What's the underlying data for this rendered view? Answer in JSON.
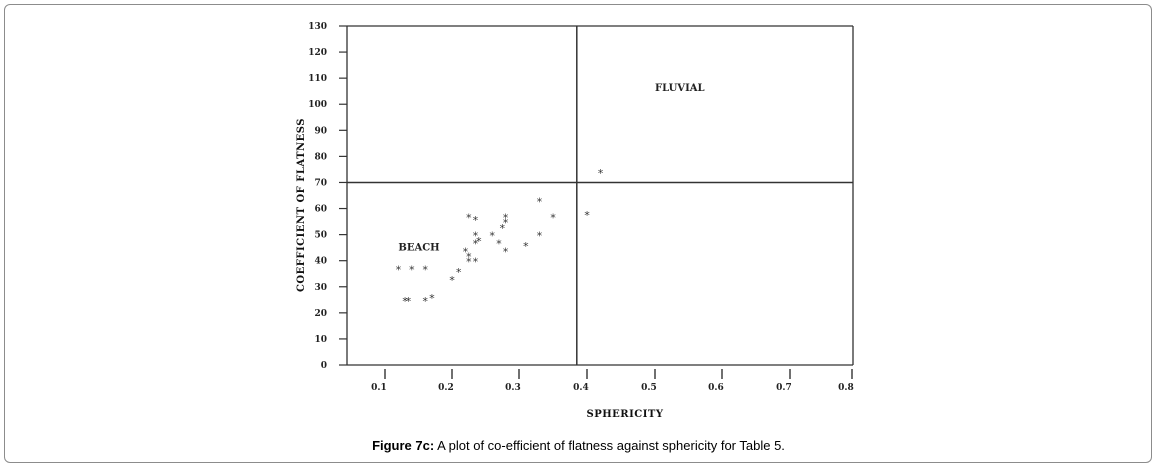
{
  "caption": {
    "label": "Figure 7c:",
    "text": " A plot of co-efficient of flatness against sphericity for Table 5."
  },
  "chart_data": {
    "type": "scatter",
    "xlabel": "SPHERICITY",
    "ylabel": "COEFFICIENT OF FLATNESS",
    "x_ticks": [
      "0.1",
      "0.2",
      "0.3",
      "0.4",
      "0.5",
      "0.6",
      "0.7",
      "0.8"
    ],
    "y_ticks": [
      "0",
      "10",
      "20",
      "30",
      "40",
      "50",
      "60",
      "70",
      "80",
      "90",
      "100",
      "110",
      "120",
      "130"
    ],
    "xlim": [
      0.05,
      0.8
    ],
    "ylim": [
      0,
      130
    ],
    "marker": "*",
    "divider_lines": {
      "x": 0.385,
      "y": 70
    },
    "region_labels": [
      {
        "text": "FLUVIAL",
        "x": 0.5,
        "y": 105
      },
      {
        "text": "BEACH",
        "x": 0.12,
        "y": 44
      }
    ],
    "points": [
      {
        "x": 0.42,
        "y": 74
      },
      {
        "x": 0.4,
        "y": 58
      },
      {
        "x": 0.35,
        "y": 57
      },
      {
        "x": 0.33,
        "y": 63
      },
      {
        "x": 0.33,
        "y": 50
      },
      {
        "x": 0.31,
        "y": 46
      },
      {
        "x": 0.28,
        "y": 57
      },
      {
        "x": 0.28,
        "y": 55
      },
      {
        "x": 0.275,
        "y": 53
      },
      {
        "x": 0.28,
        "y": 44
      },
      {
        "x": 0.27,
        "y": 47
      },
      {
        "x": 0.26,
        "y": 50
      },
      {
        "x": 0.24,
        "y": 48
      },
      {
        "x": 0.235,
        "y": 47
      },
      {
        "x": 0.235,
        "y": 50
      },
      {
        "x": 0.225,
        "y": 57
      },
      {
        "x": 0.235,
        "y": 56
      },
      {
        "x": 0.22,
        "y": 44
      },
      {
        "x": 0.225,
        "y": 42
      },
      {
        "x": 0.225,
        "y": 40
      },
      {
        "x": 0.235,
        "y": 40
      },
      {
        "x": 0.21,
        "y": 36
      },
      {
        "x": 0.2,
        "y": 33
      },
      {
        "x": 0.12,
        "y": 37
      },
      {
        "x": 0.14,
        "y": 37
      },
      {
        "x": 0.16,
        "y": 37
      },
      {
        "x": 0.13,
        "y": 25
      },
      {
        "x": 0.135,
        "y": 25
      },
      {
        "x": 0.16,
        "y": 25
      },
      {
        "x": 0.17,
        "y": 26
      }
    ]
  }
}
